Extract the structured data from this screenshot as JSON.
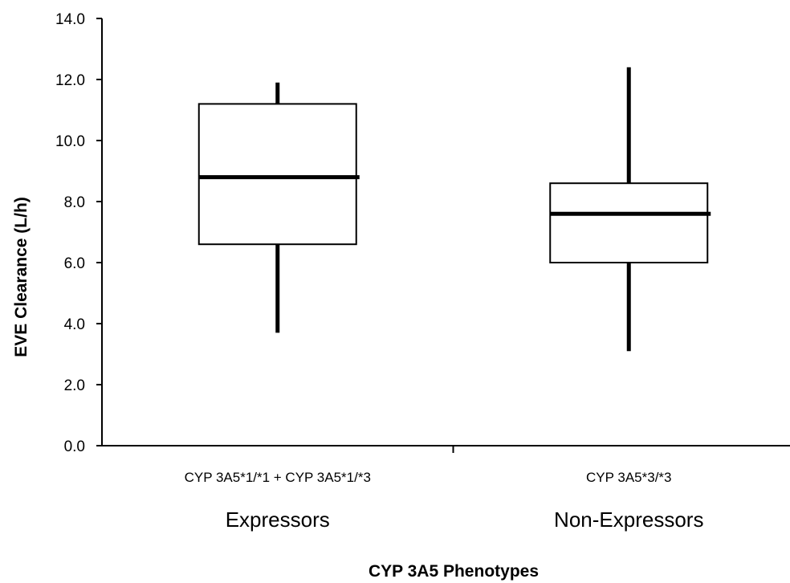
{
  "chart_data": {
    "type": "box",
    "xlabel": "CYP 3A5 Phenotypes",
    "ylabel": "EVE Clearance (L/h)",
    "ylim": [
      0,
      14
    ],
    "yticks": [
      "0.0",
      "2.0",
      "4.0",
      "6.0",
      "8.0",
      "10.0",
      "12.0",
      "14.0"
    ],
    "grid": false,
    "categories": [
      {
        "label": "CYP 3A5*1/*1 + CYP 3A5*1/*3",
        "group": "Expressors",
        "min": 3.7,
        "q1": 6.6,
        "median": 8.8,
        "q3": 11.2,
        "max": 11.9
      },
      {
        "label": "CYP 3A5*3/*3",
        "group": "Non-Expressors",
        "min": 3.1,
        "q1": 6.0,
        "median": 7.6,
        "q3": 8.6,
        "max": 12.4
      }
    ]
  }
}
